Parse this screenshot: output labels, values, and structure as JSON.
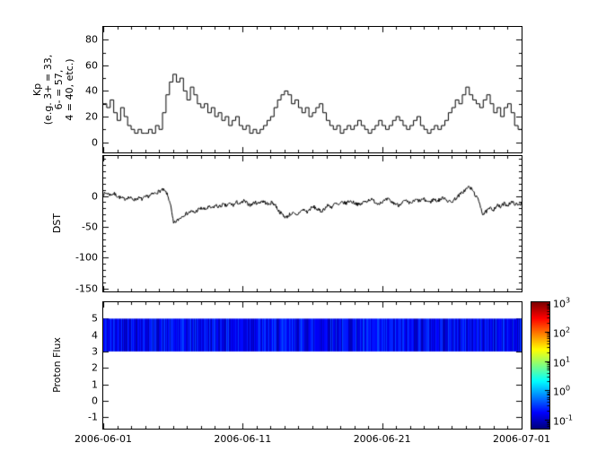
{
  "figure": {
    "background": "#ffffff",
    "axis_color": "#000000",
    "text_color": "#000000"
  },
  "x_axis": {
    "tick_labels": [
      "2006-06-01",
      "2006-06-11",
      "2006-06-21",
      "2006-07-01"
    ],
    "tick_days": [
      0,
      10,
      20,
      30
    ],
    "total_days": 30,
    "minor_step_days": 1
  },
  "chart_data": [
    {
      "name": "kp",
      "type": "line",
      "mode": "step",
      "title": "",
      "xlabel": "",
      "ylabel": "Kp\n(e.g. 3+ = 33,\n6- = 57,\n4 = 40, etc.)",
      "ylim": [
        -8,
        90
      ],
      "yticks": [
        0,
        20,
        40,
        60,
        80
      ],
      "ytick_minor_step": 10,
      "x_start": "2006-06-01",
      "x_end": "2006-07-01",
      "sample_interval_hours": 6,
      "line_color": "#000000",
      "values": [
        30,
        27,
        33,
        23,
        17,
        27,
        20,
        13,
        10,
        7,
        10,
        7,
        7,
        10,
        7,
        13,
        10,
        23,
        37,
        47,
        53,
        47,
        50,
        40,
        33,
        43,
        37,
        30,
        27,
        30,
        23,
        27,
        20,
        23,
        17,
        20,
        13,
        17,
        20,
        13,
        10,
        13,
        7,
        10,
        7,
        10,
        13,
        17,
        20,
        27,
        33,
        37,
        40,
        37,
        30,
        33,
        27,
        23,
        27,
        20,
        23,
        27,
        30,
        23,
        17,
        13,
        10,
        13,
        7,
        10,
        13,
        10,
        13,
        17,
        13,
        10,
        7,
        10,
        13,
        17,
        13,
        10,
        13,
        17,
        20,
        17,
        13,
        10,
        13,
        17,
        20,
        13,
        10,
        7,
        10,
        13,
        10,
        13,
        17,
        23,
        27,
        33,
        30,
        37,
        43,
        37,
        33,
        30,
        27,
        33,
        37,
        30,
        23,
        27,
        20,
        27,
        30,
        23,
        13,
        10
      ]
    },
    {
      "name": "dst",
      "type": "line",
      "mode": "line",
      "title": "",
      "xlabel": "",
      "ylabel": "DST",
      "ylim": [
        -155,
        65
      ],
      "yticks": [
        0,
        -50,
        -100,
        -150
      ],
      "ytick_minor_step": 10,
      "x_start": "2006-06-01",
      "x_end": "2006-07-01",
      "sample_interval_hours": 6,
      "line_color": "#000000",
      "values": [
        3,
        5,
        2,
        4,
        0,
        -3,
        -5,
        -2,
        -4,
        -6,
        -3,
        -5,
        -2,
        0,
        3,
        5,
        8,
        10,
        5,
        -10,
        -45,
        -40,
        -35,
        -30,
        -28,
        -25,
        -27,
        -22,
        -20,
        -22,
        -18,
        -20,
        -15,
        -18,
        -14,
        -16,
        -12,
        -15,
        -10,
        -13,
        -8,
        -12,
        -15,
        -10,
        -12,
        -8,
        -10,
        -14,
        -10,
        -15,
        -25,
        -30,
        -35,
        -30,
        -28,
        -32,
        -25,
        -22,
        -26,
        -20,
        -18,
        -22,
        -25,
        -20,
        -15,
        -18,
        -12,
        -15,
        -10,
        -12,
        -8,
        -10,
        -12,
        -15,
        -10,
        -8,
        -5,
        -8,
        -12,
        -10,
        -8,
        -5,
        -10,
        -12,
        -15,
        -10,
        -8,
        -12,
        -10,
        -6,
        -8,
        -5,
        -8,
        -10,
        -5,
        -8,
        -5,
        -2,
        -8,
        -10,
        -5,
        0,
        5,
        10,
        15,
        10,
        0,
        -10,
        -30,
        -25,
        -20,
        -22,
        -15,
        -18,
        -12,
        -15,
        -10,
        -12,
        -15,
        -12
      ]
    },
    {
      "name": "proton_flux",
      "type": "heatmap",
      "title": "",
      "xlabel": "",
      "ylabel": "Proton Flux",
      "ylim": [
        -1.7,
        6
      ],
      "yticks": [
        -1,
        0,
        1,
        2,
        3,
        4,
        5
      ],
      "x_start": "2006-06-01",
      "x_end": "2006-07-01",
      "colormap": "jet",
      "band": {
        "y_min": 3,
        "y_max": 5,
        "flux_min": 0.08,
        "flux_max": 0.35
      },
      "colorbar": {
        "scale": "log",
        "min": 0.05,
        "max": 1000,
        "ticks": [
          {
            "value": 1000,
            "base": "10",
            "exp": "3"
          },
          {
            "value": 100,
            "base": "10",
            "exp": "2"
          },
          {
            "value": 10,
            "base": "10",
            "exp": "1"
          },
          {
            "value": 1,
            "base": "10",
            "exp": "0"
          },
          {
            "value": 0.1,
            "base": "10",
            "exp": "-1"
          }
        ]
      }
    }
  ]
}
